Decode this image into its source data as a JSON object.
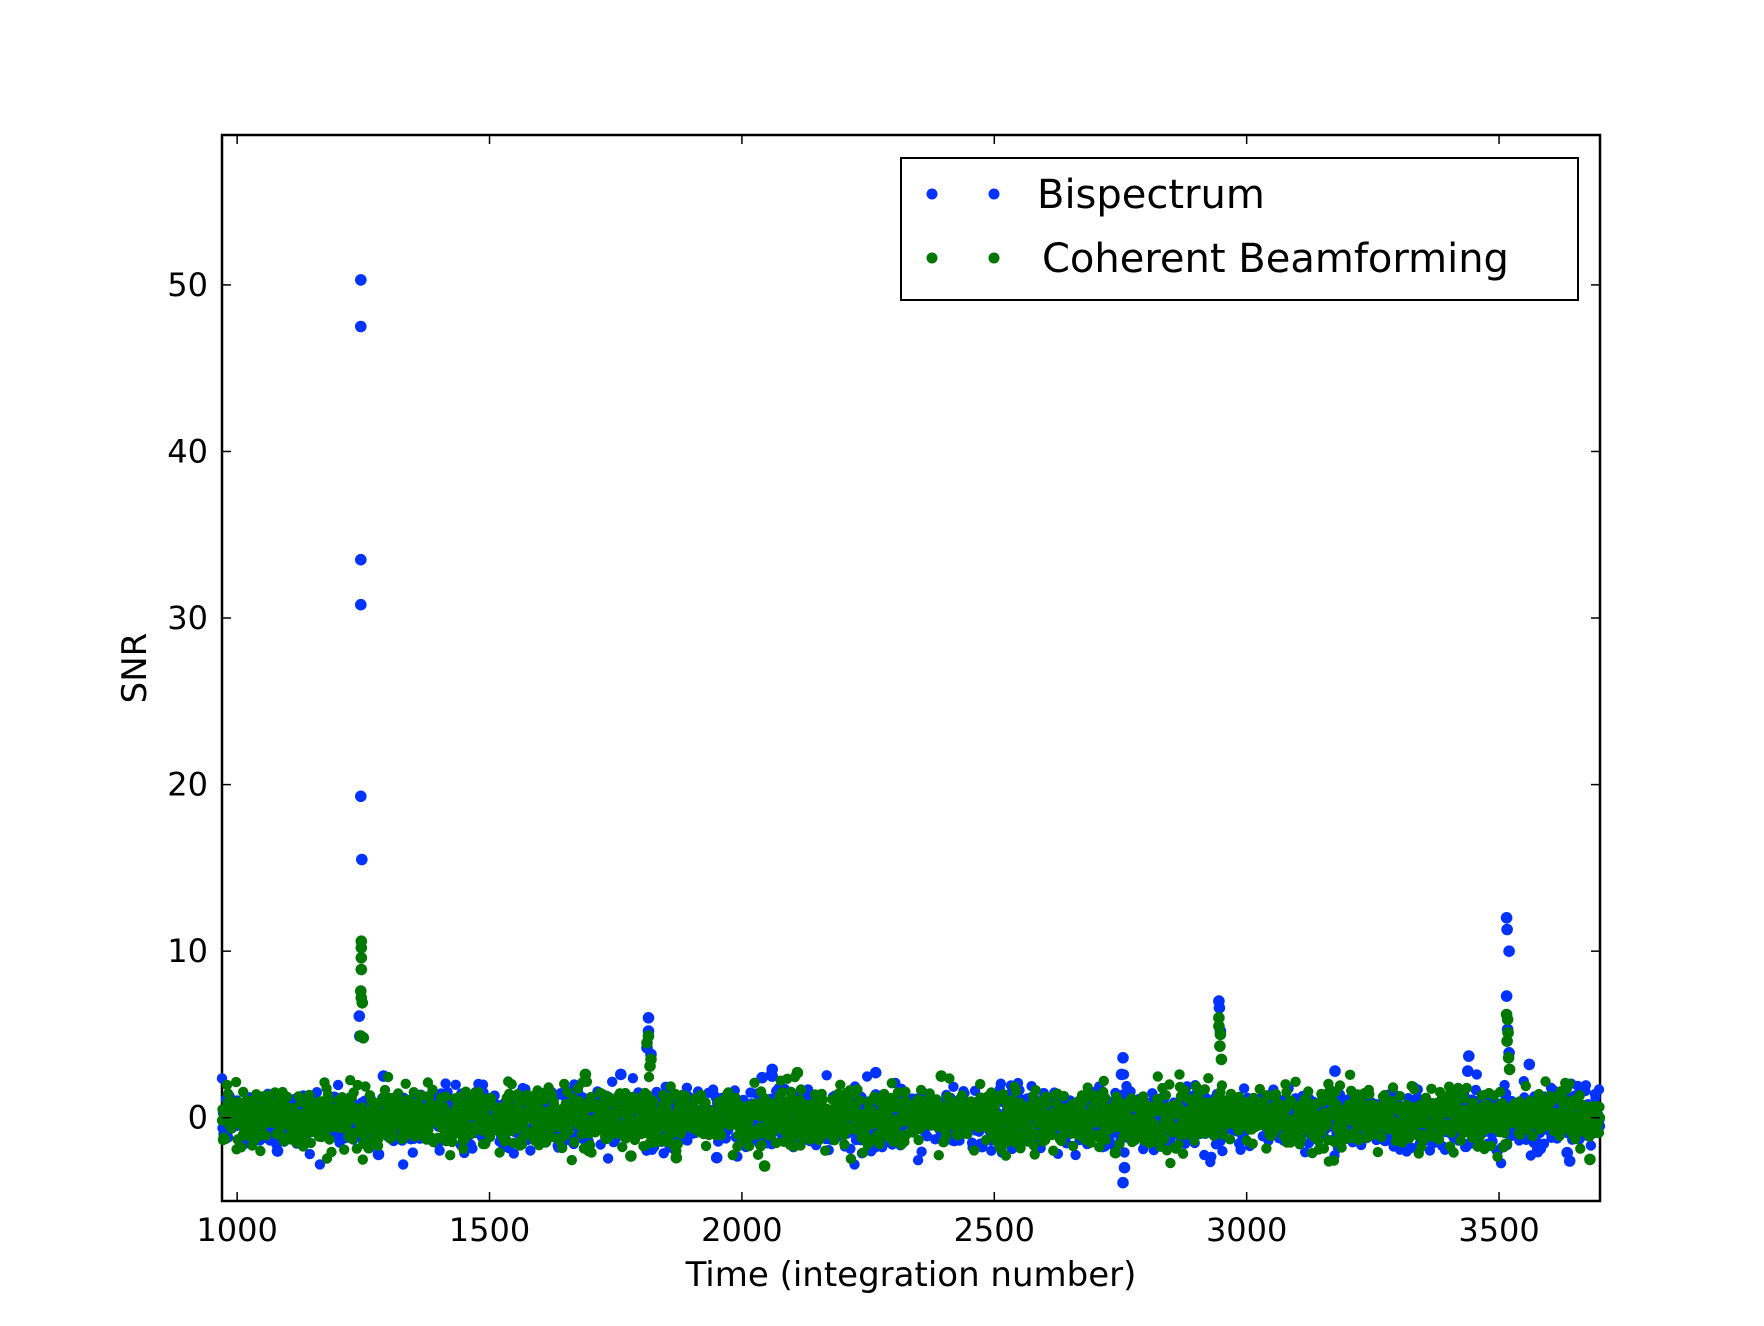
{
  "chart_data": {
    "type": "scatter",
    "title": "",
    "xlabel": "Time (integration number)",
    "ylabel": "SNR",
    "xlim": [
      970,
      3700
    ],
    "ylim": [
      -5,
      59
    ],
    "xticks": [
      1000,
      1500,
      2000,
      2500,
      3000,
      3500
    ],
    "yticks": [
      0,
      10,
      20,
      30,
      40,
      50
    ],
    "grid": false,
    "legend_position": "top-right",
    "noise_range": [
      970,
      3700
    ],
    "series": [
      {
        "name": "Bispectrum",
        "color": "#0033ff",
        "points": [
          [
            1245,
            50.3
          ],
          [
            1245,
            47.5
          ],
          [
            1245,
            33.5
          ],
          [
            1245,
            30.8
          ],
          [
            1245,
            19.3
          ],
          [
            1247,
            15.5
          ],
          [
            1242,
            6.1
          ],
          [
            1243,
            4.9
          ],
          [
            1290,
            2.5
          ],
          [
            1760,
            2.6
          ],
          [
            1815,
            6.0
          ],
          [
            1815,
            5.2
          ],
          [
            1812,
            4.2
          ],
          [
            1820,
            3.8
          ],
          [
            2060,
            2.9
          ],
          [
            2060,
            2.5
          ],
          [
            2040,
            2.4
          ],
          [
            2265,
            2.7
          ],
          [
            2755,
            3.6
          ],
          [
            2752,
            2.6
          ],
          [
            2758,
            -3.0
          ],
          [
            2755,
            -3.9
          ],
          [
            2945,
            7.0
          ],
          [
            2946,
            6.6
          ],
          [
            2948,
            5.2
          ],
          [
            3175,
            2.8
          ],
          [
            3440,
            3.7
          ],
          [
            3438,
            2.8
          ],
          [
            3515,
            12.0
          ],
          [
            3516,
            11.3
          ],
          [
            3520,
            10.0
          ],
          [
            3515,
            7.3
          ],
          [
            3517,
            5.3
          ],
          [
            3560,
            3.2
          ],
          [
            3520,
            3.9
          ],
          [
            3640,
            -2.6
          ],
          [
            3635,
            -2.1
          ],
          [
            1280,
            -2.2
          ],
          [
            1950,
            -2.4
          ],
          [
            1080,
            -2.0
          ],
          [
            2050,
            -1.5
          ]
        ]
      },
      {
        "name": "Coherent Beamforming",
        "color": "#007800",
        "points": [
          [
            1246,
            10.6
          ],
          [
            1246,
            10.2
          ],
          [
            1246,
            9.6
          ],
          [
            1246,
            8.9
          ],
          [
            1245,
            7.6
          ],
          [
            1246,
            7.2
          ],
          [
            1248,
            6.9
          ],
          [
            1245,
            4.9
          ],
          [
            1250,
            4.8
          ],
          [
            1815,
            4.9
          ],
          [
            1812,
            4.5
          ],
          [
            1820,
            3.5
          ],
          [
            1818,
            3.1
          ],
          [
            2945,
            6.0
          ],
          [
            2945,
            5.5
          ],
          [
            2948,
            5.0
          ],
          [
            2947,
            4.3
          ],
          [
            2950,
            3.5
          ],
          [
            3515,
            6.2
          ],
          [
            3517,
            5.9
          ],
          [
            3518,
            5.1
          ],
          [
            3516,
            4.6
          ],
          [
            3519,
            3.6
          ],
          [
            3521,
            2.9
          ],
          [
            1690,
            2.6
          ],
          [
            2395,
            2.5
          ],
          [
            2110,
            2.7
          ],
          [
            1780,
            -2.3
          ],
          [
            2045,
            -2.9
          ],
          [
            1870,
            -2.4
          ],
          [
            3680,
            -2.5
          ],
          [
            2740,
            -2.1
          ]
        ]
      }
    ]
  }
}
